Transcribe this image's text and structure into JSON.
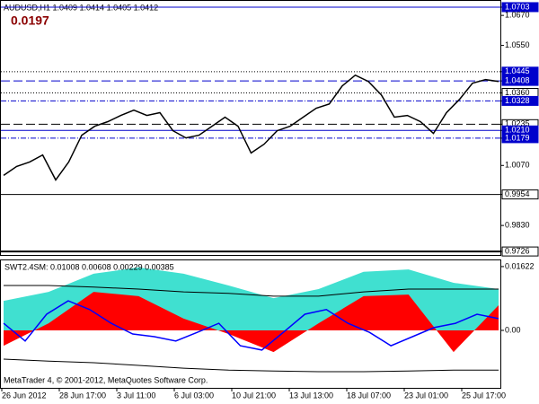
{
  "chart_data": [
    {
      "type": "line",
      "title": "AUDUSD,H1  1.0409 1.0414 1.0405 1.0412",
      "annotation": "0.0197",
      "series": [
        {
          "name": "AUDUSD",
          "color": "#000000",
          "values": [
            1.003,
            1.0066,
            1.0084,
            1.0112,
            1.0012,
            1.0084,
            1.0191,
            1.0227,
            1.0245,
            1.027,
            1.0291,
            1.027,
            1.0281,
            1.0209,
            1.018,
            1.0191,
            1.0227,
            1.0263,
            1.0227,
            1.012,
            1.0155,
            1.0209,
            1.0227,
            1.0263,
            1.0299,
            1.0316,
            1.0388,
            1.0431,
            1.0406,
            1.0352,
            1.0263,
            1.027,
            1.0245,
            1.0198,
            1.0281,
            1.0334,
            1.0399,
            1.0413,
            1.0406
          ]
        }
      ],
      "ylim": [
        0.9712,
        1.0728
      ],
      "yticks": [
        {
          "value": 1.0703,
          "label": "1.0703",
          "line": "solid",
          "color": "#0000cc",
          "box": "#0000cc"
        },
        {
          "value": 1.067,
          "label": "1.0670"
        },
        {
          "value": 1.055,
          "label": "1.0550"
        },
        {
          "value": 1.0445,
          "label": "1.0445",
          "line": "dotted",
          "color": "#000000",
          "box": "#0000cc"
        },
        {
          "value": 1.0408,
          "label": "1.0408",
          "line": "dashed",
          "color": "#0000cc",
          "box": "#0000cc"
        },
        {
          "value": 1.036,
          "label": "1.0360",
          "line": "dotted",
          "color": "#000000",
          "box": "#ffffff"
        },
        {
          "value": 1.0328,
          "label": "1.0328",
          "line": "dashdot",
          "color": "#0000cc",
          "box": "#0000cc"
        },
        {
          "value": 1.0235,
          "label": "1.0235",
          "line": "dashed",
          "color": "#000000",
          "box": "#ffffff"
        },
        {
          "value": 1.021,
          "label": "1.0210",
          "line": "solid",
          "color": "#0000cc",
          "box": "#0000cc"
        },
        {
          "value": 1.0179,
          "label": "1.0179",
          "line": "dashdot",
          "color": "#0000cc",
          "box": "#0000cc"
        },
        {
          "value": 1.007,
          "label": "1.0070"
        },
        {
          "value": 0.9954,
          "label": "0.9954",
          "line": "solid",
          "color": "#000000",
          "box": "#ffffff"
        },
        {
          "value": 0.983,
          "label": "0.9830"
        },
        {
          "value": 0.9726,
          "label": "0.9726",
          "line": "double",
          "color": "#000000",
          "box": "#ffffff"
        }
      ],
      "time_labels": [
        "26 Jun 2012",
        "28 Jun 17:00",
        "3 Jul 11:00",
        "6 Jul 03:00",
        "10 Jul 21:00",
        "13 Jul 13:00",
        "18 Jul 07:00",
        "23 Jul 01:00",
        "25 Jul 17:00"
      ]
    },
    {
      "type": "area",
      "title": "SWT2.4SM: 0.01008 0.00608 0.00229 0.00385",
      "footer": "MetaTrader 4, © 2001-2012, MetaQuotes Software Corp.",
      "series": [
        {
          "kind": "area",
          "color": "#40e0d0",
          "values": [
            0.0075,
            0.0098,
            0.0144,
            0.016,
            0.0144,
            0.0114,
            0.0082,
            0.0105,
            0.0149,
            0.0155,
            0.0121,
            0.0105
          ]
        },
        {
          "kind": "area",
          "color": "#ff0000",
          "values": [
            -0.0039,
            0.0018,
            0.0098,
            0.0087,
            0.003,
            -0.0009,
            -0.0055,
            0.0018,
            0.0087,
            0.0091,
            -0.0055,
            0.0064
          ]
        },
        {
          "kind": "line",
          "color": "#000000",
          "values": [
            0.0114,
            0.0114,
            0.011,
            0.0105,
            0.0098,
            0.0094,
            0.0087,
            0.0087,
            0.0098,
            0.0105,
            0.0105,
            0.0105
          ]
        },
        {
          "kind": "line",
          "color": "#000000",
          "values": [
            -0.0073,
            -0.0078,
            -0.0082,
            -0.0089,
            -0.0096,
            -0.0101,
            -0.0103,
            -0.0105,
            -0.0105,
            -0.0103,
            -0.0101,
            -0.0101
          ]
        },
        {
          "kind": "line",
          "color": "#0000ff",
          "values": [
            0.0018,
            -0.0027,
            0.0041,
            0.0075,
            0.0053,
            0.0018,
            -0.0009,
            -0.0016,
            -0.0027,
            -0.0005,
            0.0018,
            -0.0039,
            -0.005,
            -0.0005,
            0.0041,
            0.0053,
            0.0018,
            -0.0005,
            -0.0039,
            -0.0016,
            0.0007,
            0.0018,
            0.0041,
            0.003
          ]
        }
      ],
      "ylim": [
        -0.0146,
        0.0178
      ],
      "yticks": [
        0.01622,
        {
          "value": 0,
          "label": "0.00"
        }
      ]
    }
  ]
}
